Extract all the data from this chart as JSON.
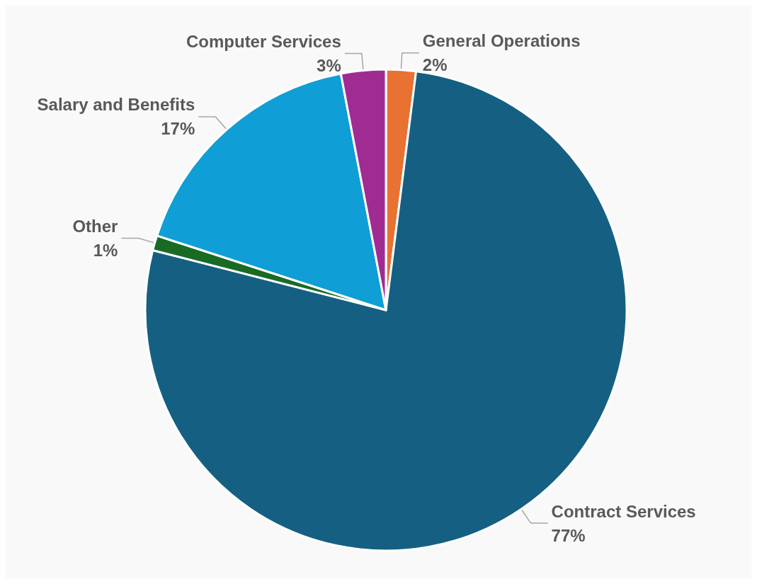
{
  "chart_data": {
    "type": "pie",
    "categories": [
      "General Operations",
      "Contract Services",
      "Other",
      "Salary and Benefits",
      "Computer Services"
    ],
    "values": [
      2,
      77,
      1,
      17,
      3
    ],
    "value_labels": [
      "2%",
      "77%",
      "1%",
      "17%",
      "3%"
    ],
    "colors": [
      "#e97132",
      "#156082",
      "#196b24",
      "#0f9ed5",
      "#a02b93"
    ]
  }
}
